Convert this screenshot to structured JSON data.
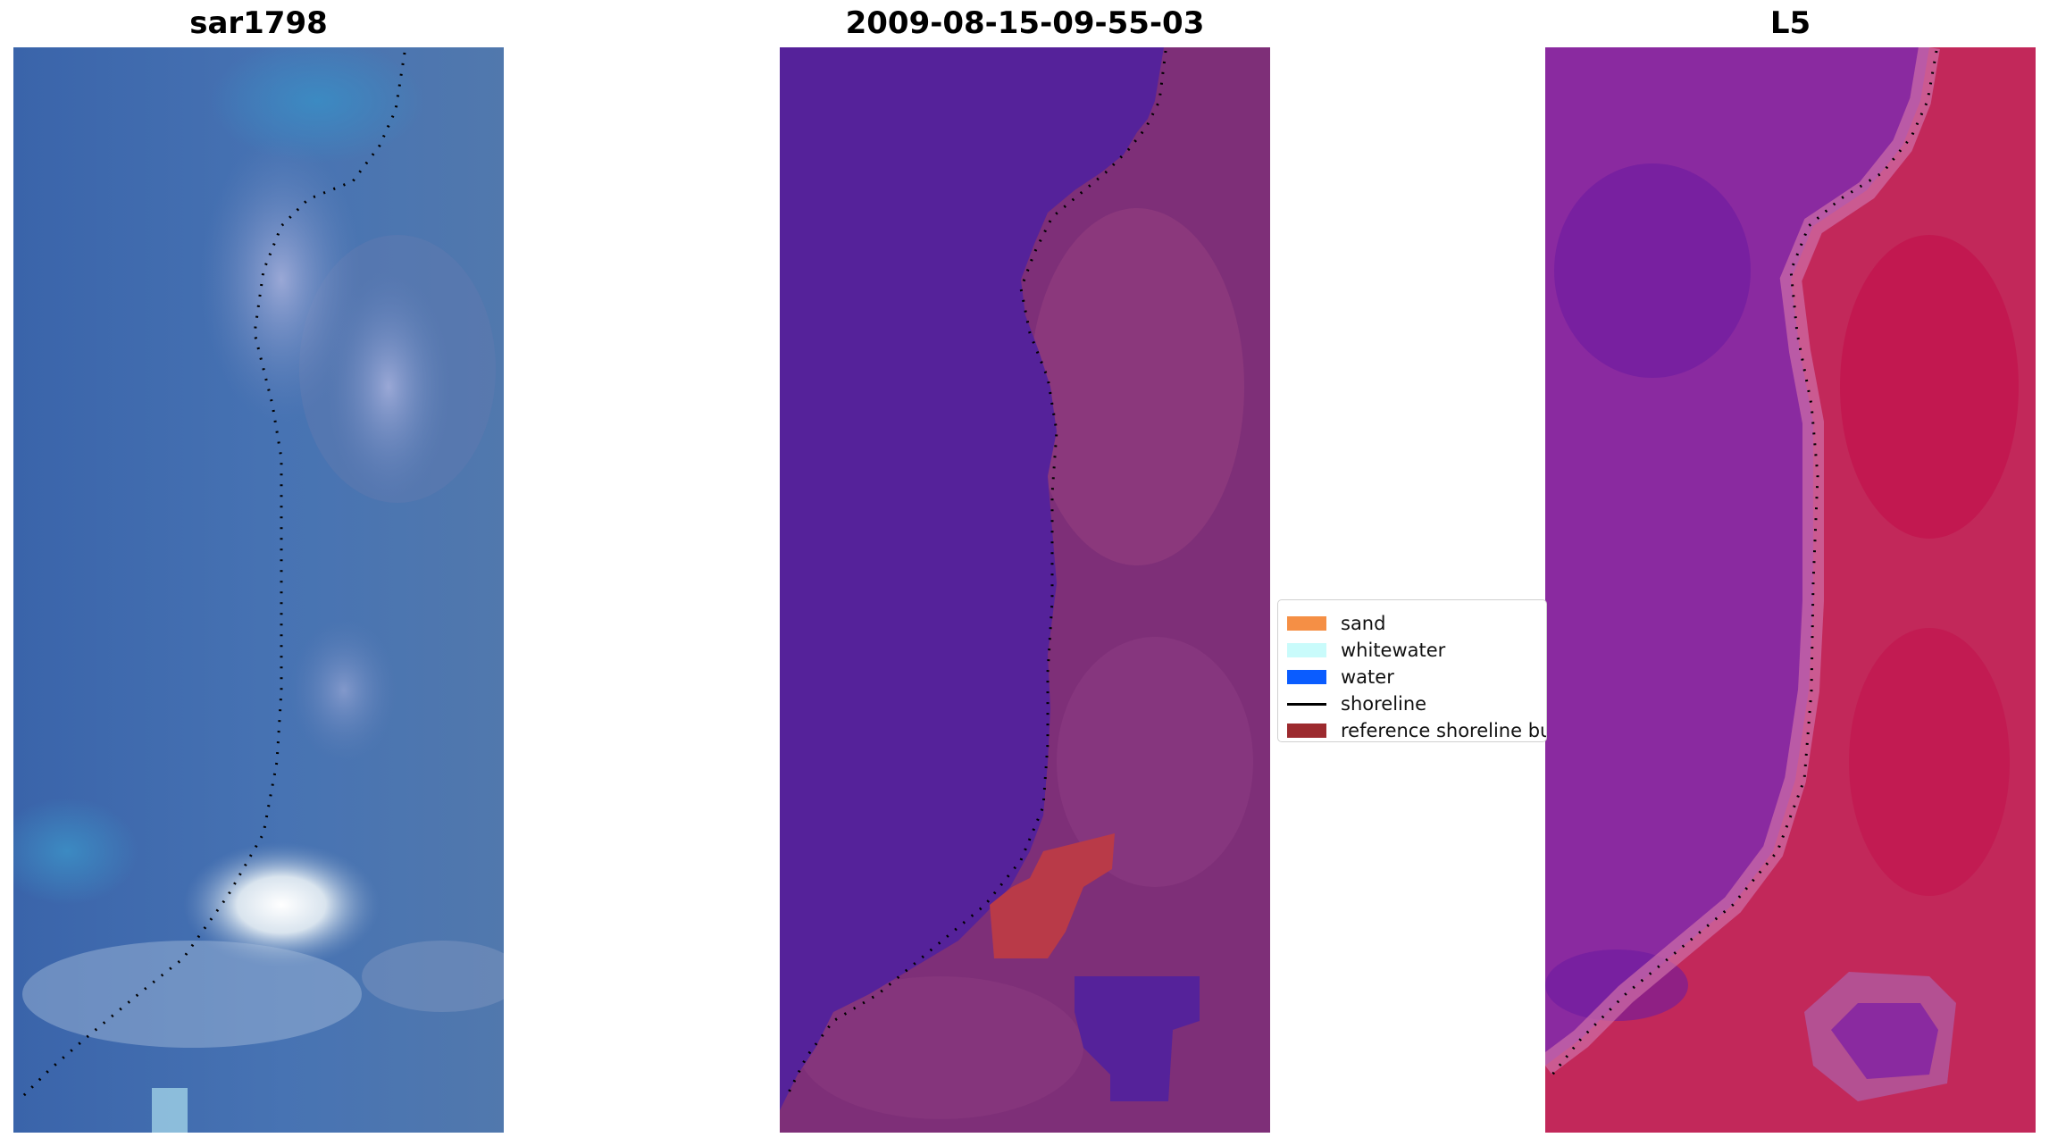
{
  "panels": [
    {
      "title": "sar1798",
      "type": "rgb-satellite"
    },
    {
      "title": "2009-08-15-09-55-03",
      "type": "classification"
    },
    {
      "title": "L5",
      "type": "index-map"
    }
  ],
  "legend": {
    "items": [
      {
        "label": "sand",
        "color": "#f58f45",
        "kind": "patch"
      },
      {
        "label": "whitewater",
        "color": "#c9fbfb",
        "kind": "patch"
      },
      {
        "label": "water",
        "color": "#0a5cff",
        "kind": "patch"
      },
      {
        "label": "shoreline",
        "color": "#000000",
        "kind": "line"
      },
      {
        "label": "reference shoreline buffer",
        "color": "#9c2a2e",
        "kind": "patch"
      }
    ]
  },
  "colors": {
    "water_class": "#55229a",
    "land_class": "#7e2f78",
    "sand_class": "#b93a48",
    "shoreline_dots": "#000000"
  }
}
